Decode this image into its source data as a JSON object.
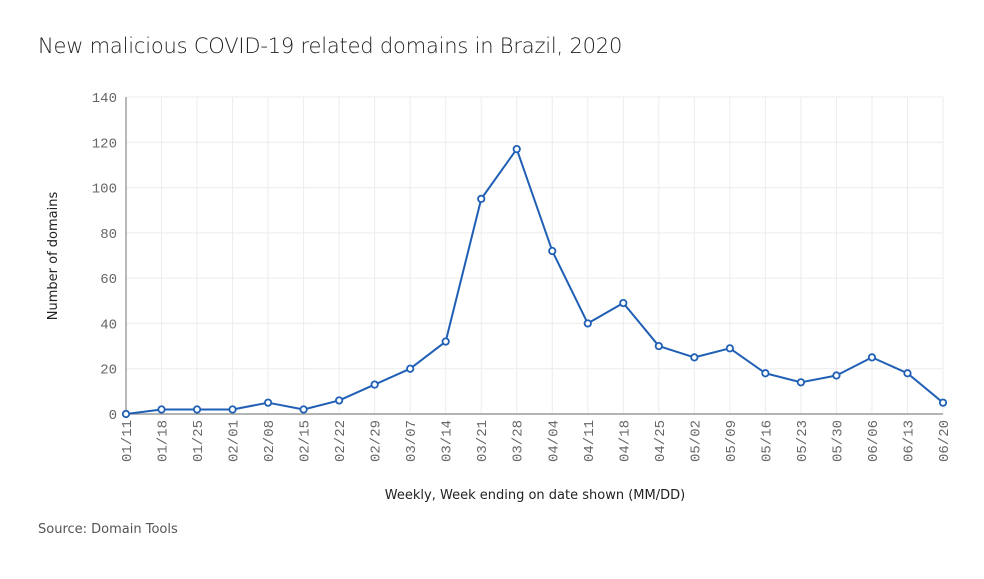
{
  "chart_data": {
    "type": "line",
    "title": "New malicious COVID-19 related domains in Brazil, 2020",
    "xlabel": "Weekly, Week ending on date shown (MM/DD)",
    "ylabel": "Number of domains",
    "source": "Source: Domain Tools",
    "ylim": [
      0,
      140
    ],
    "yticks": [
      0,
      20,
      40,
      60,
      80,
      100,
      120,
      140
    ],
    "grid": true,
    "color": "#1f5fb5",
    "categories": [
      "01/11",
      "01/18",
      "01/25",
      "02/01",
      "02/08",
      "02/15",
      "02/22",
      "02/29",
      "03/07",
      "03/14",
      "03/21",
      "03/28",
      "04/04",
      "04/11",
      "04/18",
      "04/25",
      "05/02",
      "05/09",
      "05/16",
      "05/23",
      "05/30",
      "06/06",
      "06/13",
      "06/20"
    ],
    "values": [
      0,
      2,
      2,
      2,
      5,
      2,
      6,
      13,
      20,
      32,
      95,
      117,
      72,
      40,
      49,
      30,
      25,
      29,
      18,
      14,
      17,
      25,
      18,
      5
    ]
  }
}
